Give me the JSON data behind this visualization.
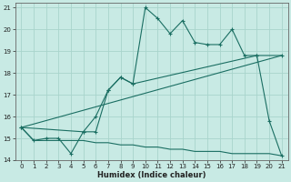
{
  "xlabel": "Humidex (Indice chaleur)",
  "bg_color": "#c8eae4",
  "grid_color": "#a8d4cc",
  "line_color": "#1a6e62",
  "xlim": [
    -0.5,
    21.5
  ],
  "ylim": [
    14,
    21.2
  ],
  "yticks": [
    14,
    15,
    16,
    17,
    18,
    19,
    20,
    21
  ],
  "xticks": [
    0,
    1,
    2,
    3,
    4,
    5,
    6,
    7,
    8,
    9,
    10,
    11,
    12,
    13,
    14,
    15,
    16,
    17,
    18,
    19,
    20,
    21
  ],
  "line1_x": [
    0,
    1,
    2,
    3,
    4,
    5,
    6,
    7,
    8,
    9,
    10,
    11,
    12,
    13,
    14,
    15,
    16,
    17,
    18,
    19,
    20,
    21
  ],
  "line1_y": [
    15.5,
    14.9,
    15.0,
    15.0,
    14.3,
    15.3,
    15.3,
    17.2,
    17.8,
    17.5,
    21.0,
    20.5,
    19.8,
    20.4,
    19.4,
    19.3,
    19.3,
    20.0,
    18.8,
    18.8,
    15.8,
    14.2
  ],
  "line2_x": [
    0,
    5,
    6,
    7,
    8,
    9,
    19,
    21
  ],
  "line2_y": [
    15.5,
    15.3,
    16.0,
    17.2,
    17.8,
    17.5,
    18.8,
    18.8
  ],
  "line3_x": [
    0,
    21
  ],
  "line3_y": [
    15.5,
    18.8
  ],
  "line4_x": [
    0,
    1,
    2,
    3,
    4,
    5,
    6,
    7,
    8,
    9,
    10,
    11,
    12,
    13,
    14,
    15,
    16,
    17,
    18,
    19,
    20,
    21
  ],
  "line4_y": [
    15.5,
    14.9,
    14.9,
    14.9,
    14.9,
    14.9,
    14.8,
    14.8,
    14.7,
    14.7,
    14.6,
    14.6,
    14.5,
    14.5,
    14.4,
    14.4,
    14.4,
    14.3,
    14.3,
    14.3,
    14.3,
    14.2
  ]
}
